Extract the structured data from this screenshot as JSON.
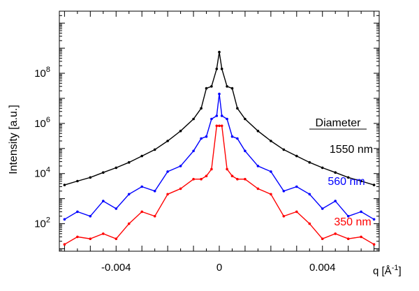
{
  "chart_data": {
    "type": "line",
    "title": "",
    "xlabel": "q [Å",
    "xlabel_sup": "-1",
    "xlabel_close": "]",
    "ylabel": "Intensity [a.u.]",
    "y_scale": "log",
    "xlim": [
      -0.0062,
      0.0062
    ],
    "ylim": [
      8,
      30000000000
    ],
    "x_tick_labels": [
      "-0.004",
      "0",
      "0.004"
    ],
    "x_ticks": [
      -0.004,
      0,
      0.004
    ],
    "y_tick_labels": [
      {
        "base": "10",
        "exp": "2",
        "value": 100
      },
      {
        "base": "10",
        "exp": "4",
        "value": 10000
      },
      {
        "base": "10",
        "exp": "6",
        "value": 1000000
      },
      {
        "base": "10",
        "exp": "8",
        "value": 100000000
      }
    ],
    "legend": {
      "title": "Diameter",
      "placement": "right",
      "entries": [
        "1550 nm",
        "560 nm",
        "350 nm"
      ]
    },
    "series": [
      {
        "name": "1550 nm",
        "color": "#000000",
        "x": [
          -0.006,
          -0.0055,
          -0.005,
          -0.0045,
          -0.004,
          -0.0035,
          -0.003,
          -0.0025,
          -0.002,
          -0.0015,
          -0.001,
          -0.0007,
          -0.0005,
          -0.0003,
          -0.0001,
          0,
          0.0001,
          0.0003,
          0.0005,
          0.0007,
          0.001,
          0.0015,
          0.002,
          0.0025,
          0.003,
          0.0035,
          0.004,
          0.0045,
          0.005,
          0.0055,
          0.006
        ],
        "y": [
          3500,
          5000,
          7000,
          11000,
          17000,
          28000,
          50000,
          90000,
          200000,
          500000,
          1500000,
          4000000,
          25000000,
          30000000,
          150000000,
          700000000,
          150000000,
          30000000,
          25000000,
          4000000,
          1500000,
          500000,
          200000,
          90000,
          50000,
          28000,
          17000,
          11000,
          7000,
          5000,
          3500
        ]
      },
      {
        "name": "560 nm",
        "color": "#0000ff",
        "x": [
          -0.006,
          -0.0055,
          -0.005,
          -0.0045,
          -0.004,
          -0.0035,
          -0.003,
          -0.0025,
          -0.002,
          -0.0015,
          -0.001,
          -0.0007,
          -0.0005,
          -0.0003,
          -0.0001,
          0,
          0.0001,
          0.0003,
          0.0005,
          0.0007,
          0.001,
          0.0015,
          0.002,
          0.0025,
          0.003,
          0.0035,
          0.004,
          0.0045,
          0.005,
          0.0055,
          0.006
        ],
        "y": [
          150,
          300,
          200,
          800,
          400,
          1500,
          3000,
          2000,
          12000,
          20000,
          80000,
          250000,
          300000,
          1500000,
          2000000,
          15000000,
          2000000,
          1500000,
          300000,
          250000,
          80000,
          20000,
          12000,
          2000,
          3000,
          1500,
          400,
          800,
          200,
          300,
          150
        ]
      },
      {
        "name": "350 nm",
        "color": "#ff0000",
        "x": [
          -0.006,
          -0.0055,
          -0.005,
          -0.0045,
          -0.004,
          -0.0035,
          -0.003,
          -0.0025,
          -0.002,
          -0.0015,
          -0.001,
          -0.0007,
          -0.0005,
          -0.0003,
          -0.0001,
          0,
          0.0001,
          0.0003,
          0.0005,
          0.0007,
          0.001,
          0.0015,
          0.002,
          0.0025,
          0.003,
          0.0035,
          0.004,
          0.0045,
          0.005,
          0.0055,
          0.006
        ],
        "y": [
          15,
          30,
          25,
          40,
          25,
          100,
          300,
          200,
          1500,
          2500,
          6000,
          6000,
          8000,
          15000,
          800000,
          800000,
          800000,
          15000,
          8000,
          6000,
          6000,
          2500,
          1500,
          200,
          300,
          100,
          25,
          40,
          25,
          30,
          15
        ]
      }
    ]
  }
}
